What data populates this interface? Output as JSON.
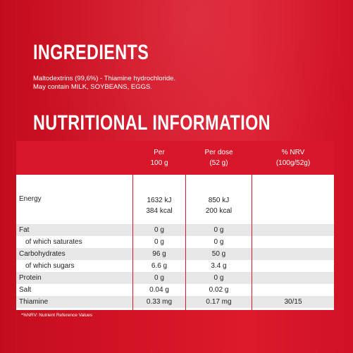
{
  "ingredients": {
    "heading": "INGREDIENTS",
    "line1": "Maltodextrins (99,6%) - Thiamine hydrochloride.",
    "line2": "May contain MILK, SOYBEANS, EGGS."
  },
  "nutrition": {
    "heading": "NUTRITIONAL INFORMATION",
    "columns": [
      {
        "line1": "Per",
        "line2": "100 g"
      },
      {
        "line1": "Per dose",
        "line2": "(52 g)"
      },
      {
        "line1": "% NRV",
        "line2": "(100g/52g)"
      }
    ],
    "rows": [
      {
        "label": "Energy",
        "per100": "1632 kJ",
        "per100b": "384 kcal",
        "dose": "850 kJ",
        "doseb": "200 kcal",
        "nrv": ""
      },
      {
        "label": "Fat",
        "per100": "0 g",
        "dose": "0 g",
        "nrv": ""
      },
      {
        "label": "of which saturates",
        "per100": "0 g",
        "dose": "0 g",
        "nrv": ""
      },
      {
        "label": "Carbohydrates",
        "per100": "96 g",
        "dose": "50 g",
        "nrv": ""
      },
      {
        "label": "of which sugars",
        "per100": "6.6 g",
        "dose": "3.4 g",
        "nrv": ""
      },
      {
        "label": "Protein",
        "per100": "0 g",
        "dose": "0 g",
        "nrv": ""
      },
      {
        "label": "Salt",
        "per100": "0.04 g",
        "dose": "0.02 g",
        "nrv": ""
      },
      {
        "label": "Thiamine",
        "per100": "0.33 mg",
        "dose": "0.17 mg",
        "nrv": "30/15"
      }
    ],
    "footnote": "*%NRV: Nutrient Reference Values"
  }
}
